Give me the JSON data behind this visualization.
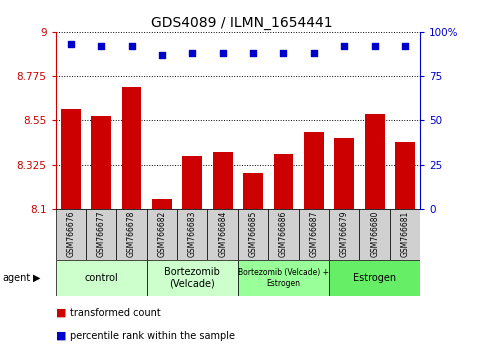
{
  "title": "GDS4089 / ILMN_1654441",
  "samples": [
    "GSM766676",
    "GSM766677",
    "GSM766678",
    "GSM766682",
    "GSM766683",
    "GSM766684",
    "GSM766685",
    "GSM766686",
    "GSM766687",
    "GSM766679",
    "GSM766680",
    "GSM766681"
  ],
  "bar_values": [
    8.61,
    8.57,
    8.72,
    8.15,
    8.37,
    8.39,
    8.28,
    8.38,
    8.49,
    8.46,
    8.58,
    8.44
  ],
  "percentile_values": [
    93,
    92,
    92,
    87,
    88,
    88,
    88,
    88,
    88,
    92,
    92,
    92
  ],
  "ymin": 8.1,
  "ymax": 9.0,
  "yticks": [
    8.1,
    8.325,
    8.55,
    8.775,
    9
  ],
  "right_yticks": [
    0,
    25,
    50,
    75,
    100
  ],
  "bar_color": "#cc0000",
  "dot_color": "#0000cc",
  "groups": [
    {
      "label": "control",
      "start": 0,
      "end": 3,
      "color": "#ccffcc"
    },
    {
      "label": "Bortezomib\n(Velcade)",
      "start": 3,
      "end": 6,
      "color": "#ccffcc"
    },
    {
      "label": "Bortezomib (Velcade) +\nEstrogen",
      "start": 6,
      "end": 9,
      "color": "#99ff99"
    },
    {
      "label": "Estrogen",
      "start": 9,
      "end": 12,
      "color": "#66ee66"
    }
  ],
  "legend_bar_label": "transformed count",
  "legend_dot_label": "percentile rank within the sample",
  "agent_label": "agent",
  "bar_color_hex": "#cc0000",
  "dot_color_hex": "#0000cc",
  "xlabel_color": "#cc0000",
  "right_axis_color": "#0000cc",
  "title_fontsize": 10,
  "tick_fontsize": 7.5,
  "bar_width": 0.65
}
